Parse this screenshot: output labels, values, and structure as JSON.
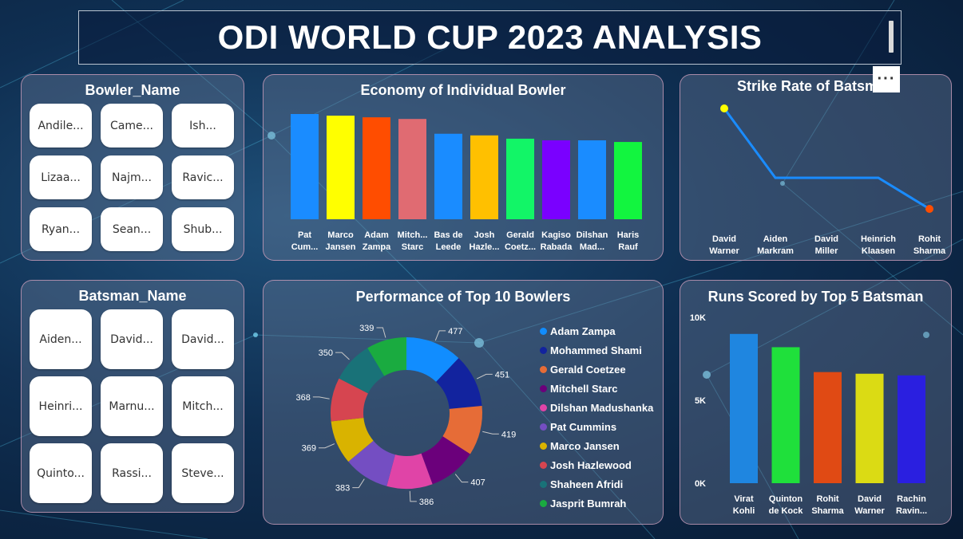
{
  "header": {
    "title": "ODI WORLD CUP 2023 ANALYSIS"
  },
  "bowler_slicer": {
    "title": "Bowler_Name",
    "items": [
      "Andile...",
      "Came...",
      "Ish...",
      "Lizaa...",
      "Najm...",
      "Ravic...",
      "Ryan...",
      "Sean...",
      "Shub..."
    ]
  },
  "batsman_slicer": {
    "title": "Batsman_Name",
    "items": [
      "Aiden...",
      "David...",
      "David...",
      "Heinri...",
      "Marnu...",
      "Mitch...",
      "Quinto...",
      "Rassi...",
      "Steve..."
    ]
  },
  "more_options": {
    "label": "···"
  },
  "chart_data": [
    {
      "id": "economy",
      "type": "bar",
      "title": "Economy of Individual Bowler",
      "categories": [
        [
          "Pat",
          "Cum..."
        ],
        [
          "Marco",
          "Jansen"
        ],
        [
          "Adam",
          "Zampa"
        ],
        [
          "Mitch...",
          "Starc"
        ],
        [
          "Bas de",
          "Leede"
        ],
        [
          "Josh",
          "Hazle..."
        ],
        [
          "Gerald",
          "Coetz..."
        ],
        [
          "Kagiso",
          "Rabada"
        ],
        [
          "Dilshan",
          "Mad..."
        ],
        [
          "Haris",
          "Rauf"
        ]
      ],
      "values": [
        6.4,
        6.3,
        6.2,
        6.1,
        5.2,
        5.1,
        4.9,
        4.8,
        4.8,
        4.7
      ],
      "colors": [
        "#1a8cff",
        "#ffff00",
        "#ff4d00",
        "#e06b72",
        "#1a8cff",
        "#ffc000",
        "#12f567",
        "#7a00ff",
        "#1a8cff",
        "#12f53f"
      ],
      "ylim": [
        0,
        6.4
      ]
    },
    {
      "id": "strike_rate",
      "type": "line",
      "title": "Strike Rate of Batsman",
      "categories": [
        [
          "David",
          "Warner"
        ],
        [
          "Aiden",
          "Markram"
        ],
        [
          "David",
          "Miller"
        ],
        [
          "Heinrich",
          "Klaasen"
        ],
        [
          "Rohit",
          "Sharma"
        ]
      ],
      "values": [
        143,
        114,
        114,
        114,
        101
      ],
      "ylim": [
        101,
        143
      ],
      "line_color": "#1a8cff",
      "first_marker_color": "#ffff00",
      "last_marker_color": "#ff4d00"
    },
    {
      "id": "top_bowlers",
      "type": "pie",
      "title": "Performance of Top 10 Bowlers",
      "labels": [
        "Adam Zampa",
        "Mohammed Shami",
        "Gerald Coetzee",
        "Mitchell Starc",
        "Dilshan Madushanka",
        "Pat Cummins",
        "Marco Jansen",
        "Josh Hazlewood",
        "Shaheen Afridi",
        "Jasprit Bumrah"
      ],
      "values": [
        477,
        451,
        419,
        407,
        386,
        383,
        369,
        368,
        350,
        339
      ],
      "colors": [
        "#118dff",
        "#12239e",
        "#e66c37",
        "#6b007b",
        "#e044a7",
        "#744ec2",
        "#d9b300",
        "#d64550",
        "#197278",
        "#1aab40"
      ],
      "legend_position": "right"
    },
    {
      "id": "top_batsman_runs",
      "type": "bar",
      "title": "Runs Scored by Top 5 Batsman",
      "categories": [
        [
          "Virat",
          "Kohli"
        ],
        [
          "Quinton",
          "de Kock"
        ],
        [
          "Rohit",
          "Sharma"
        ],
        [
          "David",
          "Warner"
        ],
        [
          "Rachin",
          "Ravin..."
        ]
      ],
      "values": [
        9000,
        8200,
        6700,
        6600,
        6500
      ],
      "colors": [
        "#1f86e0",
        "#1fe03b",
        "#e04a14",
        "#dbdb14",
        "#2a1fe0"
      ],
      "ylim": [
        0,
        10000
      ],
      "ytick_labels": [
        "0K",
        "5K",
        "10K"
      ],
      "yticks": [
        0,
        5000,
        10000
      ]
    }
  ]
}
